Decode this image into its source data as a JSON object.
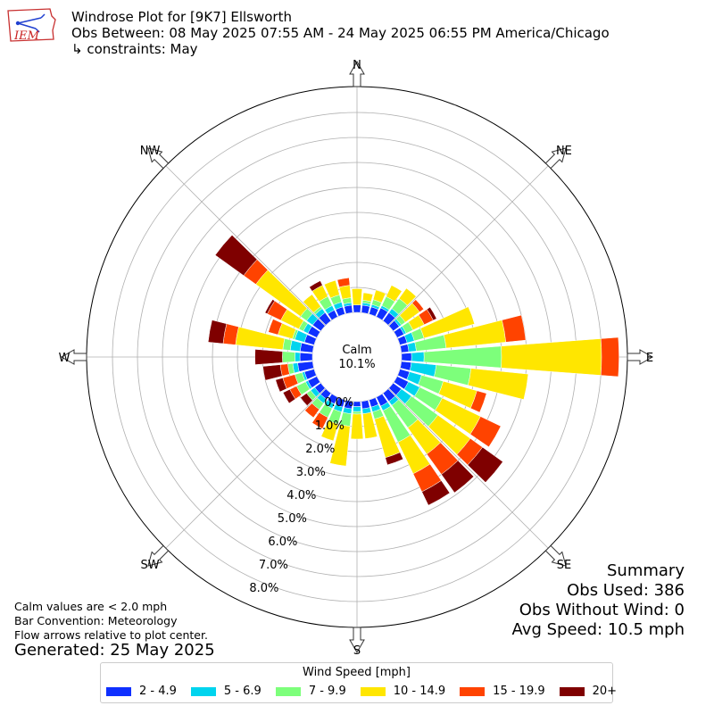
{
  "header": {
    "title": "Windrose Plot for [9K7] Ellsworth",
    "obs_between": "Obs Between: 08 May 2025 07:55 AM - 24 May 2025 06:55 PM America/Chicago",
    "constraints": "↳ constraints: May"
  },
  "logo": {
    "text": "IEM",
    "icon": "iem-logo"
  },
  "summary": {
    "heading": "Summary",
    "obs_used": "Obs Used: 386",
    "obs_without_wind": "Obs Without Wind: 0",
    "avg_speed": "Avg Speed: 10.5 mph"
  },
  "notes": {
    "calm": "Calm values are < 2.0 mph",
    "convention": "Bar Convention: Meteorology",
    "arrows": "Flow arrows relative to plot center.",
    "generated": "Generated: 25 May 2025"
  },
  "legend": {
    "title": "Wind Speed [mph]",
    "items": [
      {
        "label": "2 - 4.9",
        "color": "#0f30ff"
      },
      {
        "label": "5 - 6.9",
        "color": "#00d4ee"
      },
      {
        "label": "7 - 9.9",
        "color": "#7dff7b"
      },
      {
        "label": "10 - 14.9",
        "color": "#ffe600"
      },
      {
        "label": "15 - 19.9",
        "color": "#ff4300"
      },
      {
        "label": "20+",
        "color": "#7f0000"
      }
    ]
  },
  "chart_data": {
    "type": "windrose",
    "calm_label": "Calm",
    "calm_value": "10.1%",
    "radial_unit": "%",
    "radial_ticks": [
      0,
      1,
      2,
      3,
      4,
      5,
      6,
      7,
      8
    ],
    "radial_tick_labels": [
      "0.0%",
      "1.0%",
      "2.0%",
      "3.0%",
      "4.0%",
      "5.0%",
      "6.0%",
      "7.0%",
      "8.0%"
    ],
    "direction_labels": [
      "N",
      "NE",
      "E",
      "SE",
      "S",
      "SW",
      "W",
      "NW"
    ],
    "speed_bins": [
      "2 - 4.9",
      "5 - 6.9",
      "7 - 9.9",
      "10 - 14.9",
      "15 - 19.9",
      "20+"
    ],
    "sectors_deg": [
      0,
      10,
      20,
      30,
      40,
      50,
      60,
      70,
      80,
      90,
      100,
      110,
      120,
      130,
      140,
      150,
      160,
      170,
      180,
      190,
      200,
      210,
      220,
      230,
      240,
      250,
      260,
      270,
      280,
      290,
      300,
      310,
      320,
      330,
      340,
      350
    ],
    "cumulative": [
      [
        0.3,
        0.3,
        0.3,
        0.95,
        0.95,
        0.95
      ],
      [
        0.3,
        0.4,
        0.5,
        0.8,
        0.8,
        0.8
      ],
      [
        0.3,
        0.4,
        0.6,
        1.0,
        1.0,
        1.0
      ],
      [
        0.4,
        0.5,
        0.9,
        1.4,
        1.4,
        1.4
      ],
      [
        0.4,
        0.6,
        1.1,
        1.6,
        1.6,
        1.6
      ],
      [
        0.3,
        0.4,
        0.6,
        1.3,
        1.5,
        1.5
      ],
      [
        0.3,
        0.4,
        0.7,
        1.2,
        1.6,
        1.75
      ],
      [
        0.3,
        0.6,
        1.0,
        3.1,
        3.1,
        3.1
      ],
      [
        0.3,
        0.6,
        1.8,
        4.2,
        5.0,
        5.0
      ],
      [
        0.4,
        0.9,
        4.0,
        8.0,
        8.7,
        8.7
      ],
      [
        0.4,
        1.4,
        2.8,
        5.1,
        5.1,
        5.1
      ],
      [
        0.4,
        0.9,
        1.8,
        3.2,
        3.6,
        3.6
      ],
      [
        0.5,
        1.0,
        2.0,
        3.7,
        4.6,
        4.6
      ],
      [
        0.4,
        0.9,
        2.2,
        3.8,
        4.4,
        5.4
      ],
      [
        0.4,
        0.6,
        1.7,
        3.0,
        4.0,
        4.9
      ],
      [
        0.4,
        0.6,
        2.0,
        3.4,
        4.2,
        4.8
      ],
      [
        0.3,
        0.5,
        0.8,
        2.4,
        2.4,
        2.7
      ],
      [
        0.3,
        0.5,
        0.5,
        1.5,
        1.5,
        1.5
      ],
      [
        0.2,
        0.4,
        0.5,
        1.5,
        1.5,
        1.5
      ],
      [
        0.3,
        0.5,
        1.0,
        2.6,
        2.6,
        2.6
      ],
      [
        0.3,
        0.5,
        1.0,
        1.7,
        1.7,
        1.7
      ],
      [
        0.3,
        0.5,
        0.9,
        0.9,
        1.4,
        1.4
      ],
      [
        0.3,
        0.5,
        0.8,
        0.8,
        1.2,
        1.2
      ],
      [
        0.3,
        0.5,
        0.7,
        0.7,
        0.7,
        1.0
      ],
      [
        0.4,
        0.5,
        0.9,
        0.9,
        1.2,
        1.5
      ],
      [
        0.4,
        0.5,
        0.8,
        0.8,
        1.3,
        1.6
      ],
      [
        0.6,
        0.8,
        1.0,
        1.0,
        1.3,
        2.0
      ],
      [
        0.5,
        0.7,
        1.2,
        1.2,
        1.2,
        2.3
      ],
      [
        0.5,
        0.9,
        1.2,
        3.1,
        3.6,
        4.2
      ],
      [
        0.4,
        0.8,
        0.9,
        1.5,
        1.9,
        1.9
      ],
      [
        0.4,
        0.6,
        0.8,
        1.6,
        2.2,
        2.3
      ],
      [
        0.4,
        0.7,
        1.0,
        3.2,
        3.8,
        5.2
      ],
      [
        0.4,
        0.6,
        0.7,
        1.3,
        1.3,
        1.3
      ],
      [
        0.3,
        0.5,
        0.9,
        1.4,
        1.4,
        1.6
      ],
      [
        0.3,
        0.5,
        0.8,
        1.4,
        1.4,
        1.4
      ],
      [
        0.3,
        0.4,
        0.6,
        1.1,
        1.4,
        1.4
      ]
    ]
  }
}
